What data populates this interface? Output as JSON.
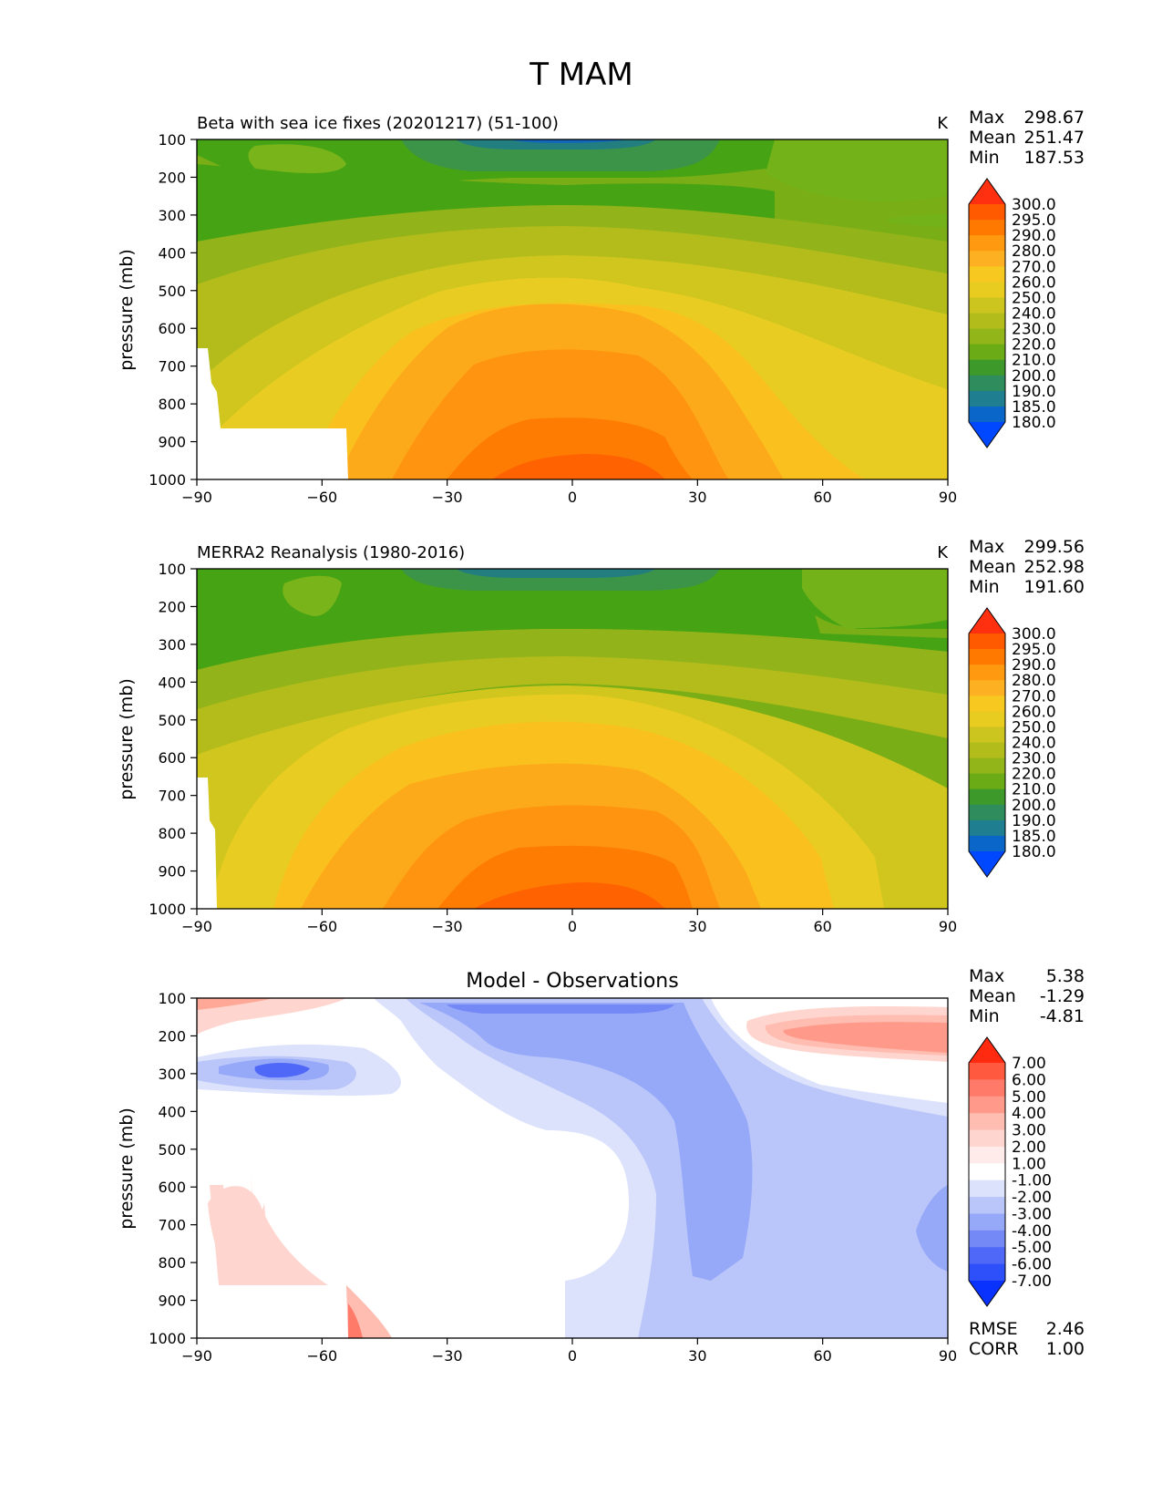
{
  "figure_title": "T MAM",
  "ylabel": "pressure (mb)",
  "x_ticks": [
    "−90",
    "−60",
    "−30",
    "0",
    "30",
    "60",
    "90"
  ],
  "y_ticks": [
    "100",
    "200",
    "300",
    "400",
    "500",
    "600",
    "700",
    "800",
    "900",
    "1000"
  ],
  "stat_labels": {
    "max": "Max",
    "mean": "Mean",
    "min": "Min",
    "rmse": "RMSE",
    "corr": "CORR"
  },
  "panels": [
    {
      "title": "Beta with sea ice fixes (20201217) (51-100)",
      "units": "K",
      "stats": {
        "max": "298.67",
        "mean": "251.47",
        "min": "187.53"
      },
      "colorbar": {
        "labels": [
          "300.0",
          "295.0",
          "290.0",
          "280.0",
          "270.0",
          "260.0",
          "250.0",
          "240.0",
          "230.0",
          "220.0",
          "210.0",
          "200.0",
          "190.0",
          "185.0",
          "180.0"
        ],
        "colors": [
          "#ff3010",
          "#ff5a00",
          "#ff7800",
          "#ff9a10",
          "#fdb022",
          "#f7c820",
          "#e8cc20",
          "#ccc520",
          "#b2bd1c",
          "#92b51a",
          "#6aab16",
          "#3d9a2a",
          "#2f8c5c",
          "#1f7e90",
          "#0a66c8",
          "#0048ff"
        ]
      }
    },
    {
      "title": "MERRA2 Reanalysis (1980-2016)",
      "units": "K",
      "stats": {
        "max": "299.56",
        "mean": "252.98",
        "min": "191.60"
      },
      "colorbar": {
        "labels": [
          "300.0",
          "295.0",
          "290.0",
          "280.0",
          "270.0",
          "260.0",
          "250.0",
          "240.0",
          "230.0",
          "220.0",
          "210.0",
          "200.0",
          "190.0",
          "185.0",
          "180.0"
        ],
        "colors": [
          "#ff3010",
          "#ff5a00",
          "#ff7800",
          "#ff9a10",
          "#fdb022",
          "#f7c820",
          "#e8cc20",
          "#ccc520",
          "#b2bd1c",
          "#92b51a",
          "#6aab16",
          "#3d9a2a",
          "#2f8c5c",
          "#1f7e90",
          "#0a66c8",
          "#0048ff"
        ]
      }
    },
    {
      "title": "Model - Observations",
      "units": "",
      "stats": {
        "max": "5.38",
        "mean": "-1.29",
        "min": "-4.81"
      },
      "metrics": {
        "rmse": "2.46",
        "corr": "1.00"
      },
      "colorbar": {
        "labels": [
          "7.00",
          "6.00",
          "5.00",
          "4.00",
          "3.00",
          "2.00",
          "1.00",
          "-1.00",
          "-2.00",
          "-3.00",
          "-4.00",
          "-5.00",
          "-6.00",
          "-7.00"
        ],
        "colors": [
          "#ff2a10",
          "#ff5a40",
          "#ff7a68",
          "#ff9a8a",
          "#ffbcb0",
          "#ffd6cf",
          "#ffecea",
          "#ffffff",
          "#dce2fb",
          "#bac6fa",
          "#96a8f8",
          "#7488f6",
          "#5068f8",
          "#2e50fa",
          "#0a32ff"
        ]
      }
    }
  ],
  "chart_data": [
    {
      "type": "heatmap",
      "title": "Beta with sea ice fixes (20201217) (51-100)",
      "xlabel": "",
      "ylabel": "pressure (mb)",
      "xlim": [
        -90,
        90
      ],
      "ylim": [
        1000,
        100
      ],
      "units": "K",
      "x": [
        -90,
        -60,
        -30,
        0,
        30,
        60,
        90
      ],
      "y": [
        100,
        200,
        300,
        400,
        500,
        600,
        700,
        800,
        900,
        1000
      ],
      "values": [
        [
          215,
          212,
          205,
          192,
          205,
          214,
          218
        ],
        [
          218,
          216,
          213,
          213,
          214,
          217,
          219
        ],
        [
          219,
          222,
          230,
          234,
          230,
          224,
          222
        ],
        [
          226,
          234,
          246,
          252,
          246,
          236,
          228
        ],
        [
          233,
          244,
          258,
          265,
          258,
          245,
          235
        ],
        [
          238,
          250,
          267,
          272,
          266,
          253,
          240
        ],
        [
          240,
          255,
          274,
          280,
          273,
          260,
          245
        ],
        [
          242,
          261,
          281,
          287,
          280,
          266,
          250
        ],
        [
          243,
          268,
          289,
          293,
          287,
          270,
          254
        ],
        [
          244,
          272,
          292,
          297,
          290,
          272,
          256
        ]
      ],
      "levels": [
        180,
        185,
        190,
        200,
        210,
        220,
        230,
        240,
        250,
        260,
        270,
        280,
        290,
        295,
        300
      ],
      "stats": {
        "max": 298.67,
        "mean": 251.47,
        "min": 187.53
      }
    },
    {
      "type": "heatmap",
      "title": "MERRA2 Reanalysis (1980-2016)",
      "xlabel": "",
      "ylabel": "pressure (mb)",
      "xlim": [
        -90,
        90
      ],
      "ylim": [
        1000,
        100
      ],
      "units": "K",
      "x": [
        -90,
        -60,
        -30,
        0,
        30,
        60,
        90
      ],
      "y": [
        100,
        200,
        300,
        400,
        500,
        600,
        700,
        800,
        900,
        1000
      ],
      "values": [
        [
          216,
          214,
          206,
          196,
          206,
          215,
          219
        ],
        [
          218,
          217,
          214,
          214,
          215,
          217,
          219
        ],
        [
          220,
          223,
          231,
          235,
          231,
          225,
          222
        ],
        [
          228,
          236,
          248,
          254,
          248,
          238,
          230
        ],
        [
          236,
          248,
          260,
          266,
          260,
          248,
          238
        ],
        [
          240,
          254,
          268,
          273,
          268,
          255,
          242
        ],
        [
          242,
          258,
          275,
          281,
          275,
          262,
          247
        ],
        [
          244,
          262,
          282,
          288,
          282,
          268,
          252
        ],
        [
          245,
          266,
          289,
          294,
          289,
          272,
          256
        ],
        [
          246,
          268,
          292,
          298,
          292,
          274,
          258
        ]
      ],
      "levels": [
        180,
        185,
        190,
        200,
        210,
        220,
        230,
        240,
        250,
        260,
        270,
        280,
        290,
        295,
        300
      ],
      "stats": {
        "max": 299.56,
        "mean": 252.98,
        "min": 191.6
      }
    },
    {
      "type": "heatmap",
      "title": "Model - Observations",
      "xlabel": "",
      "ylabel": "pressure (mb)",
      "xlim": [
        -90,
        90
      ],
      "ylim": [
        1000,
        100
      ],
      "units": "",
      "x": [
        -90,
        -60,
        -30,
        0,
        30,
        60,
        90
      ],
      "y": [
        100,
        200,
        300,
        400,
        500,
        600,
        700,
        800,
        900,
        1000
      ],
      "values": [
        [
          2.0,
          1.0,
          -2.0,
          -3.5,
          -2.0,
          -1.0,
          1.0
        ],
        [
          1.0,
          -1.0,
          -2.5,
          -3.0,
          -3.0,
          1.0,
          3.5
        ],
        [
          -2.5,
          -2.0,
          -2.0,
          -2.5,
          -3.0,
          -1.0,
          -0.5
        ],
        [
          -0.5,
          -0.5,
          -1.0,
          -2.0,
          -3.0,
          -1.5,
          -1.5
        ],
        [
          -0.5,
          -0.5,
          -0.5,
          -2.0,
          -3.0,
          -2.0,
          -2.0
        ],
        [
          0.5,
          0.0,
          -0.5,
          -1.5,
          -3.0,
          -2.0,
          -2.0
        ],
        [
          1.0,
          0.5,
          0.0,
          -1.5,
          -3.5,
          -2.5,
          -2.5
        ],
        [
          1.0,
          0.5,
          0.0,
          -1.0,
          -3.5,
          -2.5,
          -3.0
        ],
        [
          0.5,
          0.0,
          0.0,
          -1.0,
          -2.0,
          -2.0,
          -1.5
        ],
        [
          0.5,
          3.0,
          0.0,
          -1.0,
          -1.5,
          -0.5,
          -1.0
        ]
      ],
      "levels": [
        -7,
        -6,
        -5,
        -4,
        -3,
        -2,
        -1,
        1,
        2,
        3,
        4,
        5,
        6,
        7
      ],
      "stats": {
        "max": 5.38,
        "mean": -1.29,
        "min": -4.81,
        "rmse": 2.46,
        "corr": 1.0
      }
    }
  ]
}
